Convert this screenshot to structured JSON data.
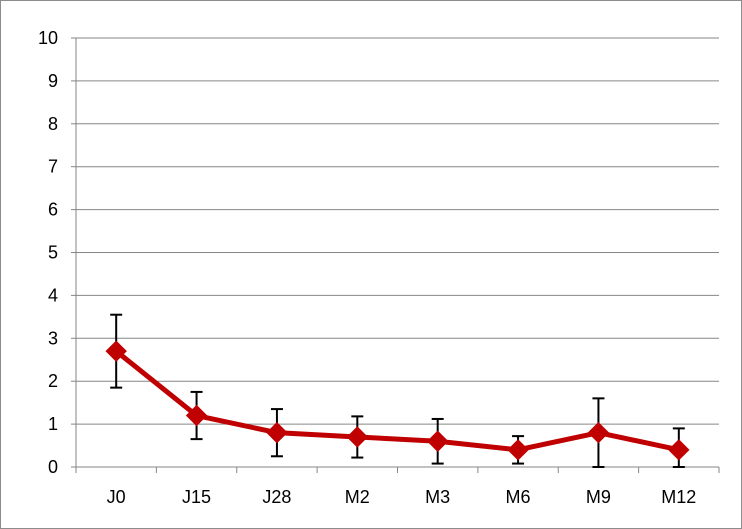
{
  "chart_data": {
    "type": "line",
    "title": "",
    "xlabel": "",
    "ylabel": "",
    "categories": [
      "J0",
      "J15",
      "J28",
      "M2",
      "M3",
      "M6",
      "M9",
      "M12"
    ],
    "series": [
      {
        "values": [
          2.7,
          1.2,
          0.8,
          0.7,
          0.6,
          0.4,
          0.8,
          0.4
        ],
        "error_upper": [
          3.55,
          1.75,
          1.35,
          1.18,
          1.12,
          0.72,
          1.6,
          0.9
        ],
        "error_lower": [
          1.85,
          0.65,
          0.25,
          0.22,
          0.08,
          0.08,
          0.0,
          0.0
        ],
        "color": "#c00000",
        "marker": "diamond"
      }
    ],
    "ylim": [
      0,
      10
    ],
    "yticks": [
      "0",
      "1",
      "2",
      "3",
      "4",
      "5",
      "6",
      "7",
      "8",
      "9",
      "10"
    ],
    "grid": true,
    "legend": "none",
    "gridline_color": "#868686",
    "error_bar_color": "#000000"
  }
}
